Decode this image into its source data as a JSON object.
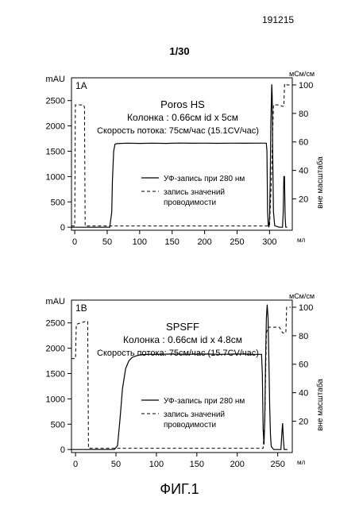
{
  "page": {
    "doc_number": "191215",
    "sheet_number": "1/30",
    "figure_caption": "ФИГ.1"
  },
  "chart_data": [
    {
      "type": "line",
      "panel_label": "1A",
      "resin": "Poros HS",
      "column": "Колонка : 0.66см  id x 5см",
      "flow_rate": "Скорость потока: 75см/час (15.1CV/час)",
      "y_unit_left": "mAU",
      "y_unit_right": "мСм/см",
      "y_label_right": "вне масштаба",
      "x_unit": "мл",
      "xlim": [
        -5,
        335
      ],
      "ylim": [
        -60,
        2950
      ],
      "y2lim": [
        -2,
        105
      ],
      "x_ticks": [
        0,
        50,
        100,
        150,
        200,
        250,
        300
      ],
      "y_ticks": [
        0,
        500,
        1000,
        1500,
        2000,
        2500
      ],
      "y2_ticks": [
        20,
        40,
        60,
        80,
        100
      ],
      "grid": false,
      "legend": {
        "position": "center-right",
        "uv_label": "УФ-запись при 280 нм",
        "cond_label_1": "запись значений",
        "cond_label_2": "проводимости"
      },
      "series": [
        {
          "name": "УФ-запись при 280 нм",
          "axis": "left",
          "style": "solid",
          "x": [
            -5,
            54,
            57,
            58,
            60,
            62,
            65,
            80,
            100,
            120,
            140,
            160,
            180,
            200,
            220,
            240,
            260,
            280,
            295,
            296,
            297,
            298,
            299,
            300,
            301,
            302,
            303,
            303.5,
            304,
            305,
            306,
            308,
            315,
            320,
            321,
            322,
            323,
            324,
            325,
            326,
            327
          ],
          "values": [
            0,
            0,
            300,
            900,
            1500,
            1640,
            1650,
            1660,
            1655,
            1660,
            1655,
            1662,
            1658,
            1660,
            1656,
            1660,
            1658,
            1660,
            1660,
            1500,
            300,
            50,
            0,
            200,
            900,
            2050,
            2600,
            2820,
            2600,
            1300,
            300,
            30,
            0,
            0,
            300,
            1000,
            1000,
            200,
            0,
            0,
            0
          ]
        },
        {
          "name": "запись значений проводимости",
          "axis": "right",
          "style": "dashed",
          "x": [
            -5,
            0,
            1,
            14,
            15,
            16,
            20,
            298,
            300,
            303,
            306,
            308,
            312,
            315,
            320,
            322,
            323,
            325,
            327,
            328,
            332
          ],
          "values": [
            1,
            1,
            86,
            86,
            84,
            1,
            1,
            1,
            1,
            35,
            86,
            86,
            86,
            86,
            85,
            85,
            100,
            101,
            100,
            100,
            100
          ]
        }
      ]
    },
    {
      "type": "line",
      "panel_label": "1B",
      "resin": "SPSFF",
      "column": "Колонка : 0.66см  id x 4.8см",
      "flow_rate": "Скорость потока: 75см/час (15.7CV/час)",
      "y_unit_left": "mAU",
      "y_unit_right": "мСм/см",
      "y_label_right": "вне масштаба",
      "x_unit": "мл",
      "xlim": [
        -5,
        268
      ],
      "ylim": [
        -60,
        2950
      ],
      "y2lim": [
        -2,
        105
      ],
      "x_ticks": [
        0,
        50,
        100,
        150,
        200,
        250
      ],
      "y_ticks": [
        0,
        500,
        1000,
        1500,
        2000,
        2500
      ],
      "y2_ticks": [
        20,
        40,
        60,
        80,
        100
      ],
      "grid": false,
      "legend": {
        "position": "center-right",
        "uv_label": "УФ-запись при 280 нм",
        "cond_label_1": "запись значений",
        "cond_label_2": "проводимости"
      },
      "series": [
        {
          "name": "УФ-запись при 280 нм",
          "axis": "left",
          "style": "solid",
          "x": [
            -5,
            48,
            52,
            55,
            58,
            62,
            66,
            70,
            75,
            80,
            90,
            100,
            120,
            140,
            160,
            180,
            200,
            220,
            230,
            231,
            232,
            233,
            234,
            235,
            236,
            237,
            238,
            239,
            240,
            241,
            242,
            245,
            250,
            254,
            255,
            256,
            257,
            258,
            262
          ],
          "values": [
            0,
            0,
            80,
            600,
            1200,
            1600,
            1750,
            1820,
            1850,
            1870,
            1880,
            1880,
            1885,
            1880,
            1885,
            1880,
            1885,
            1880,
            1880,
            1500,
            400,
            100,
            600,
            1800,
            2600,
            2860,
            2600,
            1800,
            900,
            300,
            60,
            0,
            0,
            0,
            300,
            520,
            200,
            0,
            0
          ]
        },
        {
          "name": "запись значений проводимости",
          "axis": "right",
          "style": "dashed",
          "x": [
            -5,
            0,
            1,
            12,
            15,
            16,
            20,
            230,
            232,
            234,
            236,
            238,
            240,
            243,
            248,
            252,
            256,
            258,
            260,
            261,
            262,
            266
          ],
          "values": [
            64,
            64,
            88,
            90,
            90,
            1,
            1,
            1,
            1,
            20,
            82,
            86,
            86,
            86,
            86,
            86,
            82,
            82,
            82,
            100,
            100,
            100
          ]
        }
      ]
    }
  ]
}
